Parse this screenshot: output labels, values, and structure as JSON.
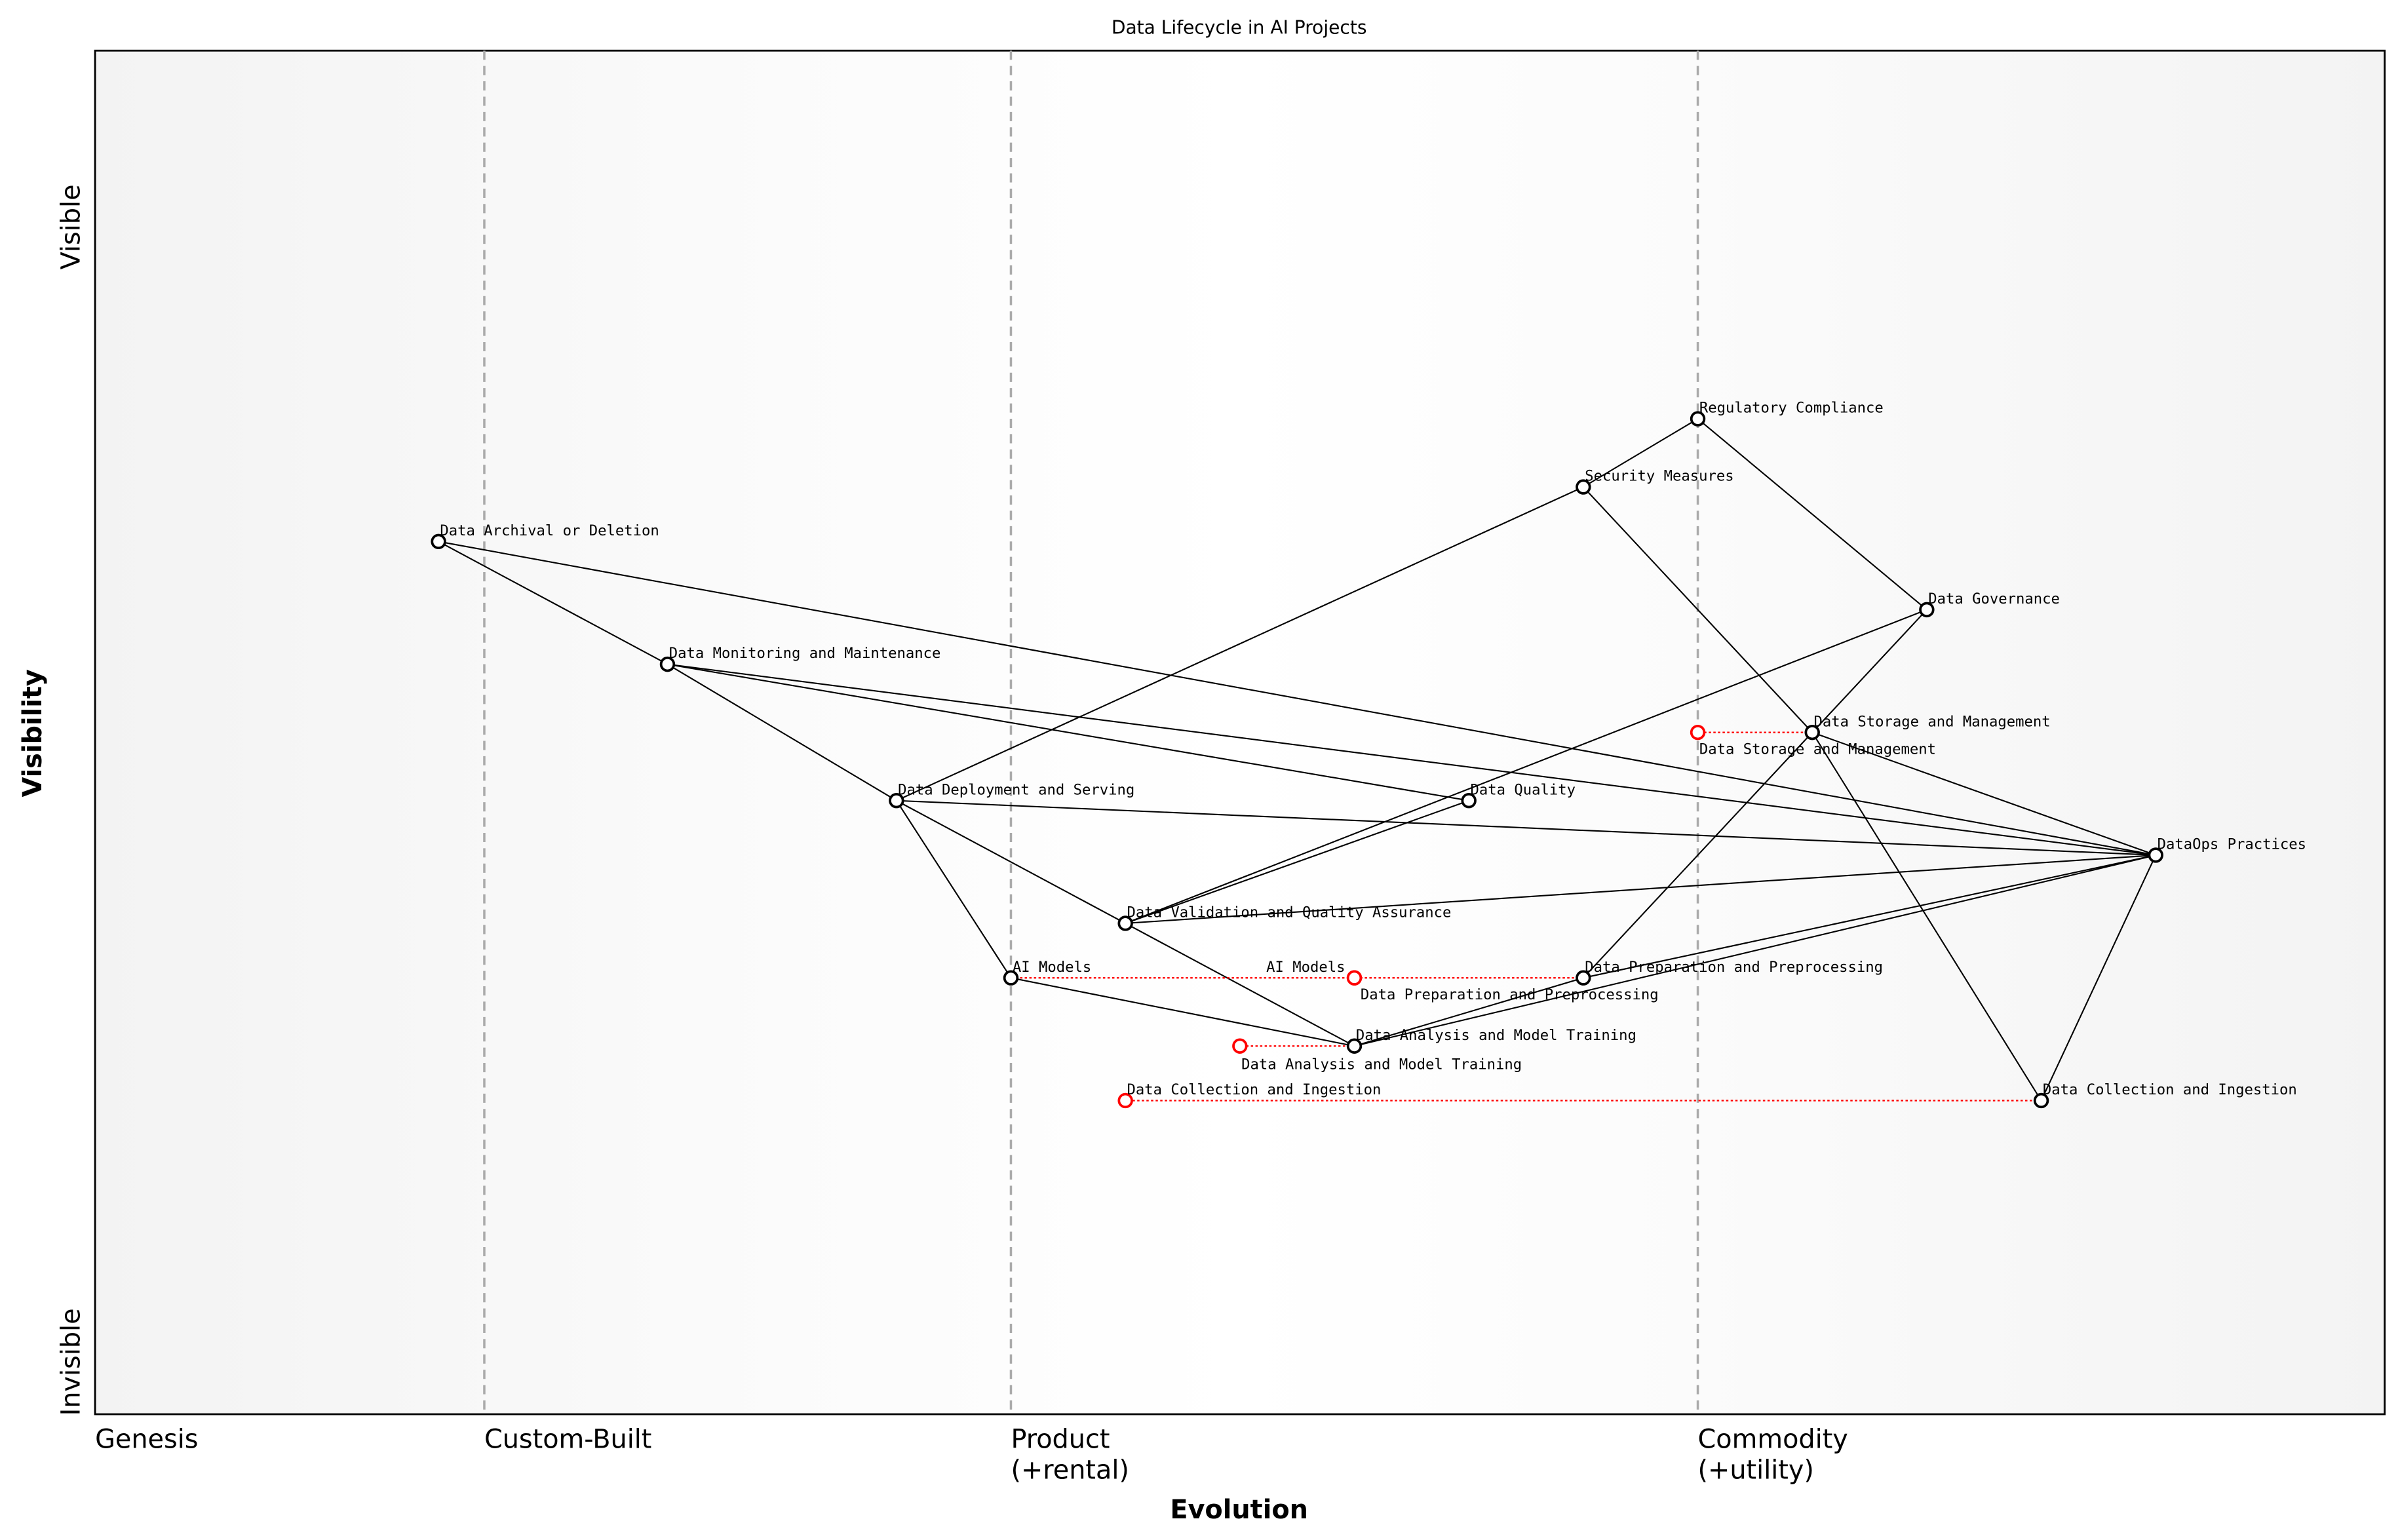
{
  "title": "Data Lifecycle in AI Projects",
  "x_axis": {
    "label": "Evolution",
    "stages": [
      {
        "name": "Genesis",
        "at": 0.0
      },
      {
        "name": "Custom-Built",
        "at": 0.17
      },
      {
        "name": "Product\n(+rental)",
        "at": 0.4
      },
      {
        "name": "Commodity\n(+utility)",
        "at": 0.7
      }
    ]
  },
  "y_axis": {
    "label": "Visibility",
    "top": "Visible",
    "bottom": "Invisible"
  },
  "colors": {
    "node": "#000000",
    "evolve": "#ff0000",
    "divider": "#aaaaaa"
  },
  "components": [
    {
      "id": "reg",
      "name": "Regulatory Compliance",
      "evolution": 0.7,
      "visibility": 0.73
    },
    {
      "id": "sec",
      "name": "Security Measures",
      "evolution": 0.65,
      "visibility": 0.68
    },
    {
      "id": "arch",
      "name": "Data Archival or Deletion",
      "evolution": 0.15,
      "visibility": 0.64
    },
    {
      "id": "gov",
      "name": "Data Governance",
      "evolution": 0.8,
      "visibility": 0.59
    },
    {
      "id": "mon",
      "name": "Data Monitoring and Maintenance",
      "evolution": 0.25,
      "visibility": 0.55
    },
    {
      "id": "stor",
      "name": "Data Storage and Management",
      "evolution": 0.75,
      "visibility": 0.5
    },
    {
      "id": "dep",
      "name": "Data Deployment and Serving",
      "evolution": 0.35,
      "visibility": 0.45
    },
    {
      "id": "qual",
      "name": "Data Quality",
      "evolution": 0.6,
      "visibility": 0.45
    },
    {
      "id": "ops",
      "name": "DataOps Practices",
      "evolution": 0.9,
      "visibility": 0.41
    },
    {
      "id": "val",
      "name": "Data Validation and Quality Assurance",
      "evolution": 0.45,
      "visibility": 0.36
    },
    {
      "id": "ai",
      "name": "AI Models",
      "evolution": 0.4,
      "visibility": 0.32
    },
    {
      "id": "prep",
      "name": "Data Preparation and Preprocessing",
      "evolution": 0.65,
      "visibility": 0.32
    },
    {
      "id": "ana",
      "name": "Data Analysis and Model Training",
      "evolution": 0.55,
      "visibility": 0.27
    },
    {
      "id": "col",
      "name": "Data Collection and Ingestion",
      "evolution": 0.85,
      "visibility": 0.23
    }
  ],
  "evolutions": [
    {
      "name": "Data Storage and Management",
      "from": "stor",
      "evolution": 0.7
    },
    {
      "name": "AI Models",
      "from": "ai",
      "evolution": 0.55
    },
    {
      "name": "Data Preparation and Preprocessing",
      "from": "prep",
      "evolution": 0.55
    },
    {
      "name": "Data Analysis and Model Training",
      "from": "ana",
      "evolution": 0.5
    },
    {
      "name": "Data Collection and Ingestion",
      "from": "col",
      "evolution": 0.45
    }
  ],
  "links": [
    [
      "arch",
      "mon"
    ],
    [
      "arch",
      "ops"
    ],
    [
      "mon",
      "dep"
    ],
    [
      "mon",
      "qual"
    ],
    [
      "mon",
      "ops"
    ],
    [
      "dep",
      "sec"
    ],
    [
      "dep",
      "ops"
    ],
    [
      "dep",
      "ai"
    ],
    [
      "dep",
      "val"
    ],
    [
      "val",
      "ana"
    ],
    [
      "val",
      "gov"
    ],
    [
      "val",
      "qual"
    ],
    [
      "val",
      "ops"
    ],
    [
      "reg",
      "sec"
    ],
    [
      "reg",
      "gov"
    ],
    [
      "sec",
      "stor"
    ],
    [
      "gov",
      "stor"
    ],
    [
      "stor",
      "prep"
    ],
    [
      "stor",
      "ops"
    ],
    [
      "stor",
      "col"
    ],
    [
      "ai",
      "ana"
    ],
    [
      "ana",
      "prep"
    ],
    [
      "ana",
      "ops"
    ],
    [
      "prep",
      "ops"
    ],
    [
      "ops",
      "col"
    ]
  ]
}
